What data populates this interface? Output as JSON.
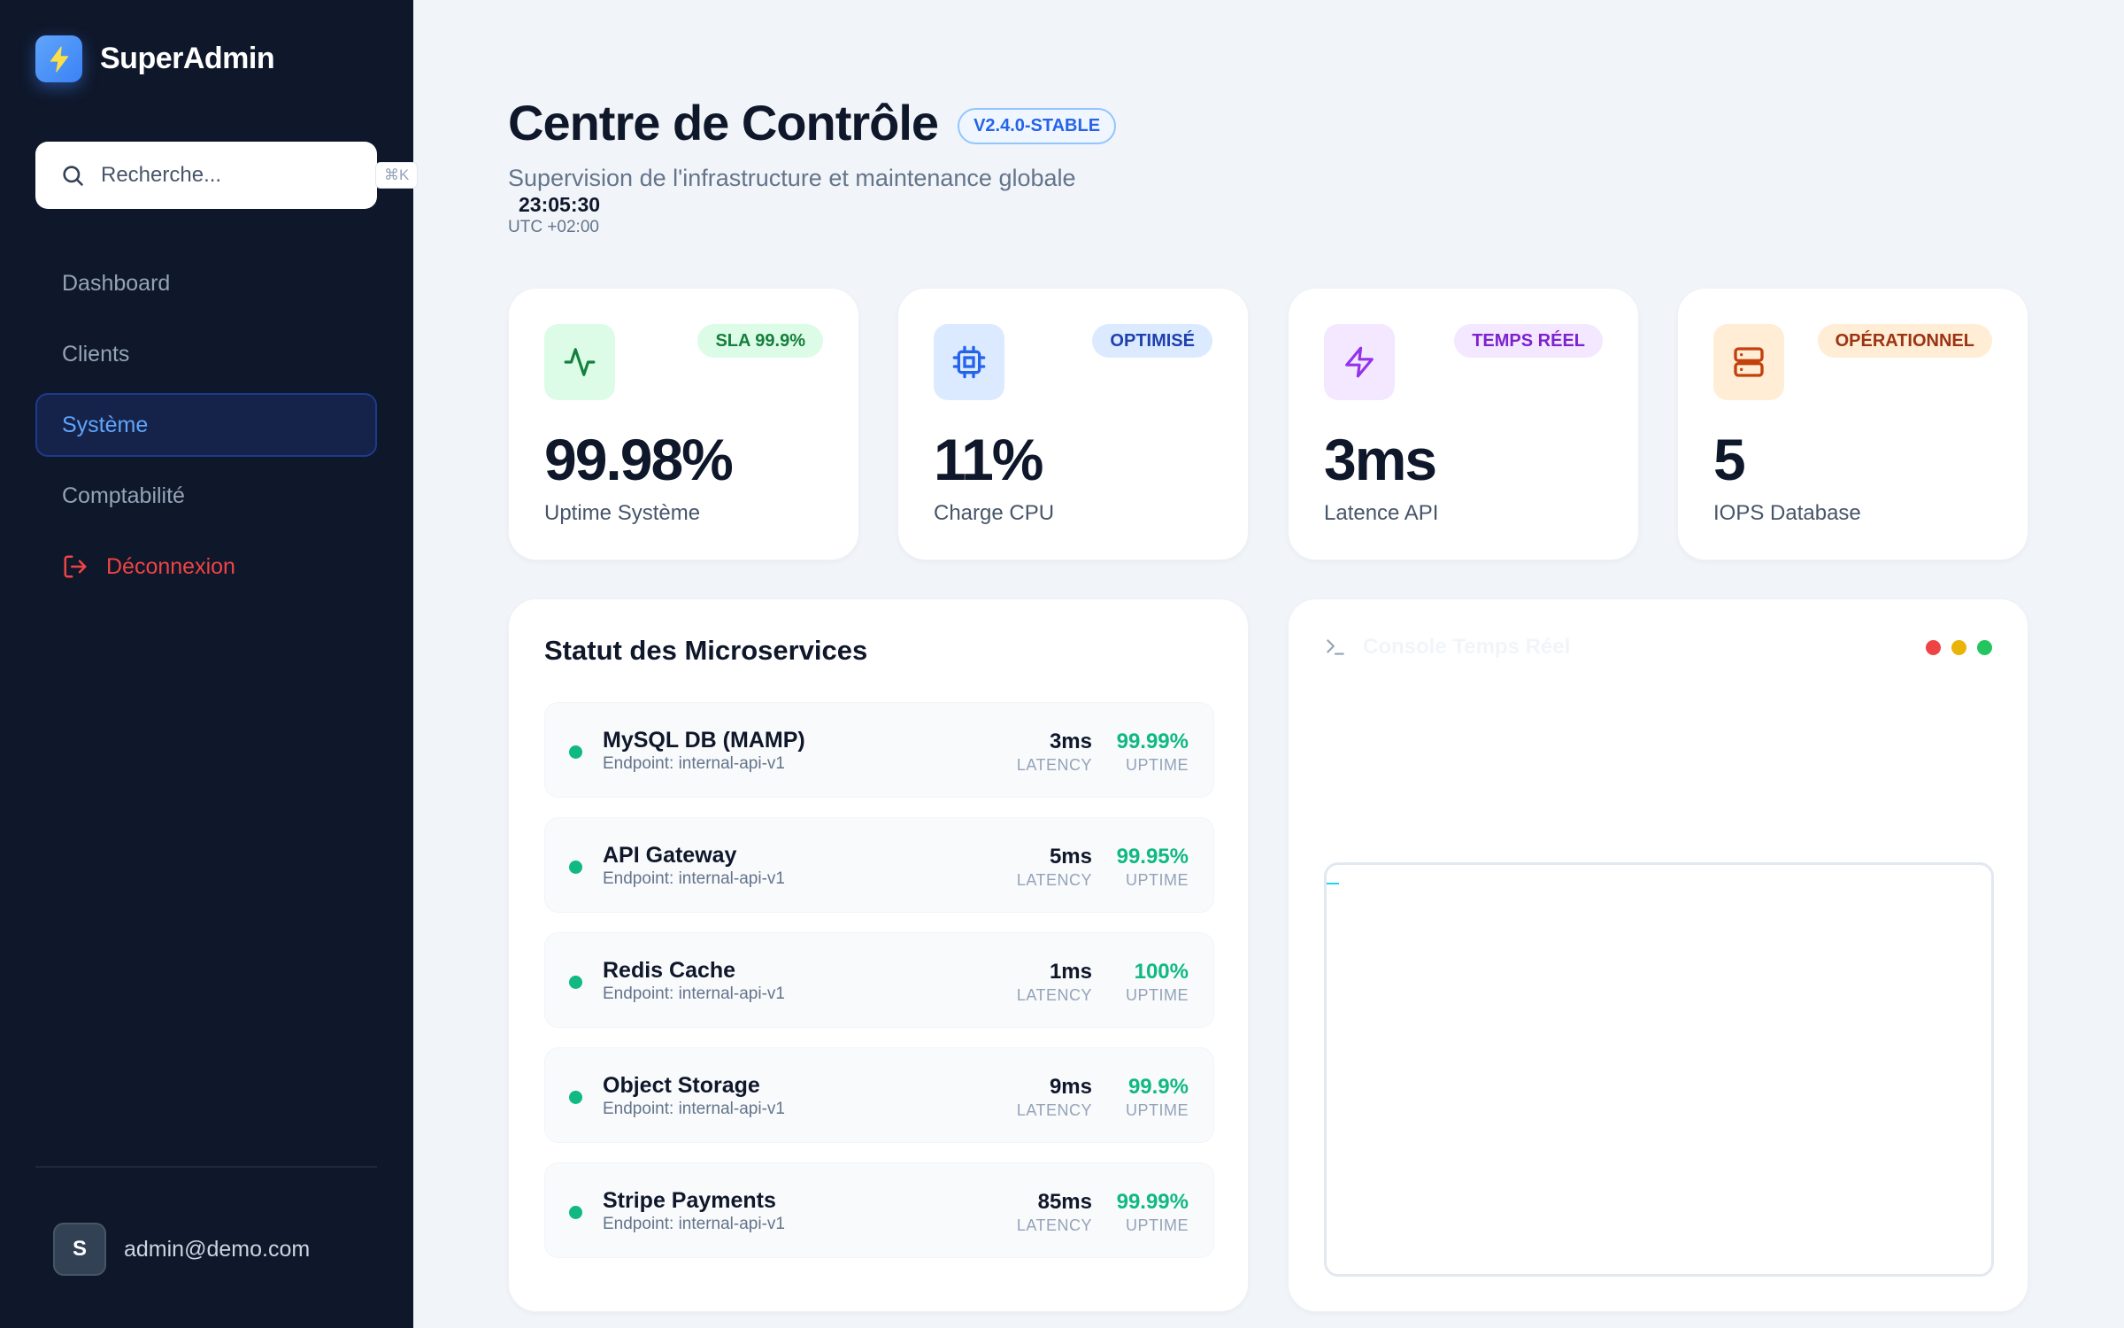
{
  "sidebar": {
    "brand": "SuperAdmin",
    "search": {
      "placeholder": "Recherche...",
      "shortcut": "⌘K"
    },
    "nav": [
      {
        "label": "Dashboard",
        "active": false
      },
      {
        "label": "Clients",
        "active": false
      },
      {
        "label": "Système",
        "active": true
      },
      {
        "label": "Comptabilité",
        "active": false
      }
    ],
    "logout_label": "Déconnexion",
    "user": {
      "initial": "S",
      "email": "admin@demo.com"
    }
  },
  "header": {
    "title": "Centre de Contrôle",
    "version": "V2.4.0-STABLE",
    "subtitle": "Supervision de l'infrastructure et maintenance globale",
    "clock": "23:05:30",
    "timezone": "UTC +02:00"
  },
  "stats": [
    {
      "icon": "activity-icon",
      "badge": "SLA 99.9%",
      "value": "99.98%",
      "label": "Uptime Système",
      "icon_bg": "#dcfce7",
      "icon_color": "#15803d",
      "badge_bg": "#dcfce7",
      "badge_color": "#15803d"
    },
    {
      "icon": "cpu-icon",
      "badge": "OPTIMISÉ",
      "value": "11%",
      "label": "Charge CPU",
      "icon_bg": "#dbeafe",
      "icon_color": "#2563eb",
      "badge_bg": "#dbeafe",
      "badge_color": "#1e40af"
    },
    {
      "icon": "zap-icon",
      "badge": "TEMPS RÉEL",
      "value": "3ms",
      "label": "Latence API",
      "icon_bg": "#f3e8ff",
      "icon_color": "#9333ea",
      "badge_bg": "#f3e8ff",
      "badge_color": "#7e22ce"
    },
    {
      "icon": "server-icon",
      "badge": "OPÉRATIONNEL",
      "value": "5",
      "label": "IOPS Database",
      "icon_bg": "#ffedd5",
      "icon_color": "#c2410c",
      "badge_bg": "#ffedd5",
      "badge_color": "#9a3412"
    }
  ],
  "services": {
    "title": "Statut des Microservices",
    "latency_caption": "LATENCY",
    "uptime_caption": "UPTIME",
    "items": [
      {
        "name": "MySQL DB (MAMP)",
        "endpoint": "Endpoint: internal-api-v1",
        "latency": "3ms",
        "uptime": "99.99%"
      },
      {
        "name": "API Gateway",
        "endpoint": "Endpoint: internal-api-v1",
        "latency": "5ms",
        "uptime": "99.95%"
      },
      {
        "name": "Redis Cache",
        "endpoint": "Endpoint: internal-api-v1",
        "latency": "1ms",
        "uptime": "100%"
      },
      {
        "name": "Object Storage",
        "endpoint": "Endpoint: internal-api-v1",
        "latency": "9ms",
        "uptime": "99.9%"
      },
      {
        "name": "Stripe Payments",
        "endpoint": "Endpoint: internal-api-v1",
        "latency": "85ms",
        "uptime": "99.99%"
      }
    ]
  },
  "console": {
    "title": "Console Temps Réel",
    "dot_colors": [
      "#ef4444",
      "#eab308",
      "#22c55e"
    ]
  },
  "colors": {
    "sidebar_bg": "#0f172a",
    "accent": "#3b82f6",
    "success": "#10b981",
    "danger": "#ef4444"
  }
}
